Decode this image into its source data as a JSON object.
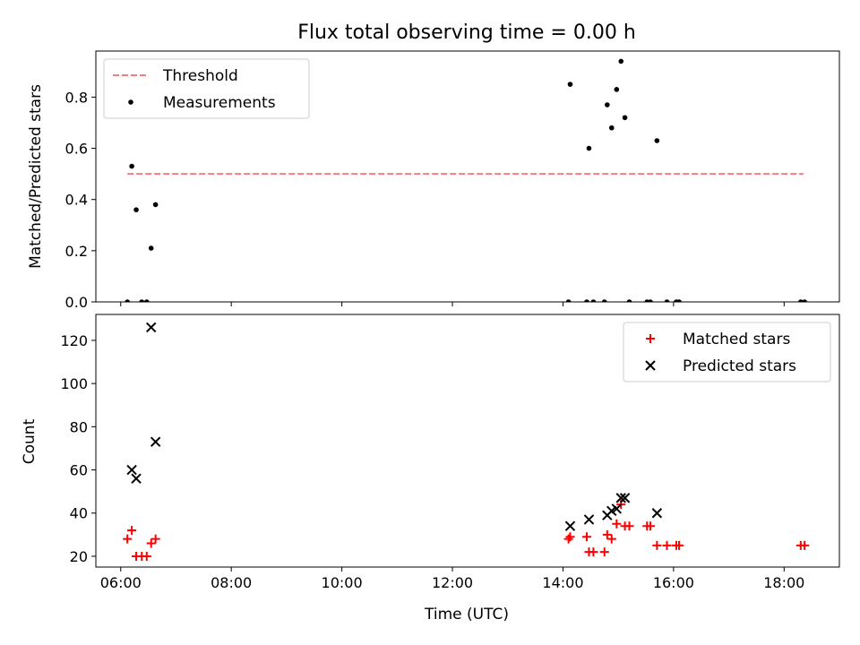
{
  "chart_data": [
    {
      "type": "scatter",
      "title": "Flux total observing time = 0.00 h",
      "xlabel": "",
      "ylabel": "Matched/Predicted stars",
      "x_unit": "hours UTC",
      "xlim": [
        5.55,
        19.0
      ],
      "ylim": [
        0,
        0.98
      ],
      "yticks": [
        0.0,
        0.2,
        0.4,
        0.6,
        0.8
      ],
      "ytick_labels": [
        "0.0",
        "0.2",
        "0.4",
        "0.6",
        "0.8"
      ],
      "legend_position": "upper-left",
      "grid": false,
      "series": [
        {
          "name": "Threshold",
          "kind": "line",
          "style": "dashed",
          "color": "#f08080",
          "x": [
            6.12,
            18.35
          ],
          "y": [
            0.5,
            0.5
          ]
        },
        {
          "name": "Measurements",
          "kind": "scatter",
          "marker": "dot",
          "color": "#000000",
          "points": [
            [
              6.12,
              0.0
            ],
            [
              6.2,
              0.53
            ],
            [
              6.28,
              0.36
            ],
            [
              6.38,
              0.0
            ],
            [
              6.47,
              0.0
            ],
            [
              6.55,
              0.21
            ],
            [
              6.63,
              0.38
            ],
            [
              14.1,
              0.0
            ],
            [
              14.13,
              0.85
            ],
            [
              14.43,
              0.0
            ],
            [
              14.47,
              0.6
            ],
            [
              14.55,
              0.0
            ],
            [
              14.75,
              0.0
            ],
            [
              14.8,
              0.77
            ],
            [
              14.88,
              0.68
            ],
            [
              14.97,
              0.83
            ],
            [
              15.05,
              0.94
            ],
            [
              15.12,
              0.72
            ],
            [
              15.2,
              0.0
            ],
            [
              15.52,
              0.0
            ],
            [
              15.58,
              0.0
            ],
            [
              15.7,
              0.63
            ],
            [
              15.88,
              0.0
            ],
            [
              16.05,
              0.0
            ],
            [
              16.1,
              0.0
            ],
            [
              18.3,
              0.0
            ],
            [
              18.37,
              0.0
            ]
          ]
        }
      ]
    },
    {
      "type": "scatter",
      "title": "",
      "xlabel": "Time (UTC)",
      "ylabel": "Count",
      "x_unit": "hours UTC",
      "xlim": [
        5.55,
        19.0
      ],
      "ylim": [
        15,
        132
      ],
      "yticks": [
        20,
        40,
        60,
        80,
        100,
        120
      ],
      "xticks": [
        6,
        8,
        10,
        12,
        14,
        16,
        18
      ],
      "xtick_labels": [
        "06:00",
        "08:00",
        "10:00",
        "12:00",
        "14:00",
        "16:00",
        "18:00"
      ],
      "legend_position": "upper-right",
      "grid": false,
      "series": [
        {
          "name": "Matched stars",
          "kind": "scatter",
          "marker": "plus",
          "color": "#ff0000",
          "points": [
            [
              6.12,
              28
            ],
            [
              6.2,
              32
            ],
            [
              6.28,
              20
            ],
            [
              6.38,
              20
            ],
            [
              6.47,
              20
            ],
            [
              6.55,
              26
            ],
            [
              6.63,
              28
            ],
            [
              14.1,
              28
            ],
            [
              14.13,
              29
            ],
            [
              14.43,
              29
            ],
            [
              14.47,
              22
            ],
            [
              14.55,
              22
            ],
            [
              14.75,
              22
            ],
            [
              14.8,
              30
            ],
            [
              14.88,
              28
            ],
            [
              14.97,
              35
            ],
            [
              15.05,
              44
            ],
            [
              15.12,
              34
            ],
            [
              15.2,
              34
            ],
            [
              15.52,
              34
            ],
            [
              15.58,
              34
            ],
            [
              15.7,
              25
            ],
            [
              15.88,
              25
            ],
            [
              16.05,
              25
            ],
            [
              16.1,
              25
            ],
            [
              18.3,
              25
            ],
            [
              18.37,
              25
            ]
          ]
        },
        {
          "name": "Predicted stars",
          "kind": "scatter",
          "marker": "x",
          "color": "#000000",
          "points": [
            [
              6.2,
              60
            ],
            [
              6.28,
              56
            ],
            [
              6.55,
              126
            ],
            [
              6.63,
              73
            ],
            [
              14.13,
              34
            ],
            [
              14.47,
              37
            ],
            [
              14.8,
              39
            ],
            [
              14.88,
              41
            ],
            [
              14.97,
              42
            ],
            [
              15.05,
              47
            ],
            [
              15.12,
              47
            ],
            [
              15.7,
              40
            ]
          ]
        }
      ]
    }
  ]
}
